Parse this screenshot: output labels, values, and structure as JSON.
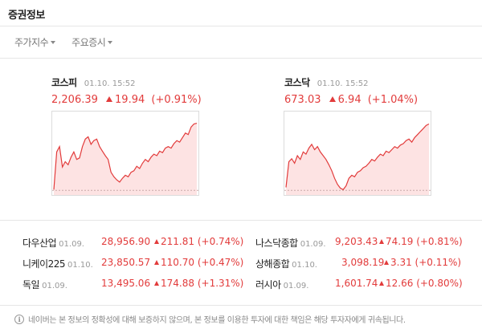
{
  "title": "증권정보",
  "tabs": [
    {
      "label": "주가지수"
    },
    {
      "label": "주요증시"
    }
  ],
  "indices": [
    {
      "name": "코스피",
      "time": "01.10. 15:52",
      "value": "2,206.39",
      "change": "19.94",
      "percent": "(+0.91%)"
    },
    {
      "name": "코스닥",
      "time": "01.10. 15:52",
      "value": "673.03",
      "change": "6.94",
      "percent": "(+1.04%)"
    }
  ],
  "markets": [
    {
      "name": "다우산업",
      "date": "01.09.",
      "value": "28,956.90",
      "change": "211.81",
      "percent": "(+0.74%)"
    },
    {
      "name": "나스닥종합",
      "date": "01.09.",
      "value": "9,203.43",
      "change": "74.19",
      "percent": "(+0.81%)"
    },
    {
      "name": "니케이225",
      "date": "01.10.",
      "value": "23,850.57",
      "change": "110.70",
      "percent": "(+0.47%)"
    },
    {
      "name": "상해종합",
      "date": "01.10.",
      "value": "3,098.19",
      "change": "3.31",
      "percent": "(+0.11%)"
    },
    {
      "name": "독일",
      "date": "01.09.",
      "value": "13,495.06",
      "change": "174.88",
      "percent": "(+1.31%)"
    },
    {
      "name": "러시아",
      "date": "01.09.",
      "value": "1,601.74",
      "change": "12.66",
      "percent": "(+0.80%)"
    }
  ],
  "notice": "네이버는 본 정보의 정확성에 대해 보증하지 않으며, 본 정보를 이용한 투자에 대한 책임은 해당 투자자에게 귀속됩니다.",
  "colors": {
    "up": "#e23b3b",
    "area": "#fde3e3"
  },
  "chart_data": [
    {
      "type": "area",
      "series": [
        {
          "values": [
            0.05,
            0.55,
            0.62,
            0.35,
            0.42,
            0.38,
            0.48,
            0.55,
            0.45,
            0.47,
            0.62,
            0.72,
            0.75,
            0.65,
            0.7,
            0.72,
            0.62,
            0.56,
            0.5,
            0.45,
            0.28,
            0.22,
            0.18,
            0.15,
            0.2,
            0.24,
            0.22,
            0.28,
            0.3,
            0.36,
            0.33,
            0.4,
            0.45,
            0.42,
            0.48,
            0.52,
            0.5,
            0.56,
            0.54,
            0.6,
            0.62,
            0.6,
            0.66,
            0.7,
            0.68,
            0.74,
            0.8,
            0.78,
            0.88,
            0.92,
            0.93
          ]
        }
      ],
      "baseline": 0.04
    },
    {
      "type": "area",
      "series": [
        {
          "values": [
            0.08,
            0.42,
            0.46,
            0.4,
            0.5,
            0.45,
            0.55,
            0.52,
            0.6,
            0.65,
            0.58,
            0.62,
            0.55,
            0.5,
            0.45,
            0.38,
            0.3,
            0.2,
            0.12,
            0.07,
            0.05,
            0.1,
            0.2,
            0.24,
            0.22,
            0.28,
            0.3,
            0.34,
            0.36,
            0.4,
            0.45,
            0.43,
            0.48,
            0.52,
            0.5,
            0.56,
            0.54,
            0.58,
            0.62,
            0.6,
            0.64,
            0.66,
            0.7,
            0.72,
            0.68,
            0.74,
            0.78,
            0.82,
            0.86,
            0.9,
            0.92
          ]
        }
      ],
      "baseline": 0.04
    }
  ]
}
